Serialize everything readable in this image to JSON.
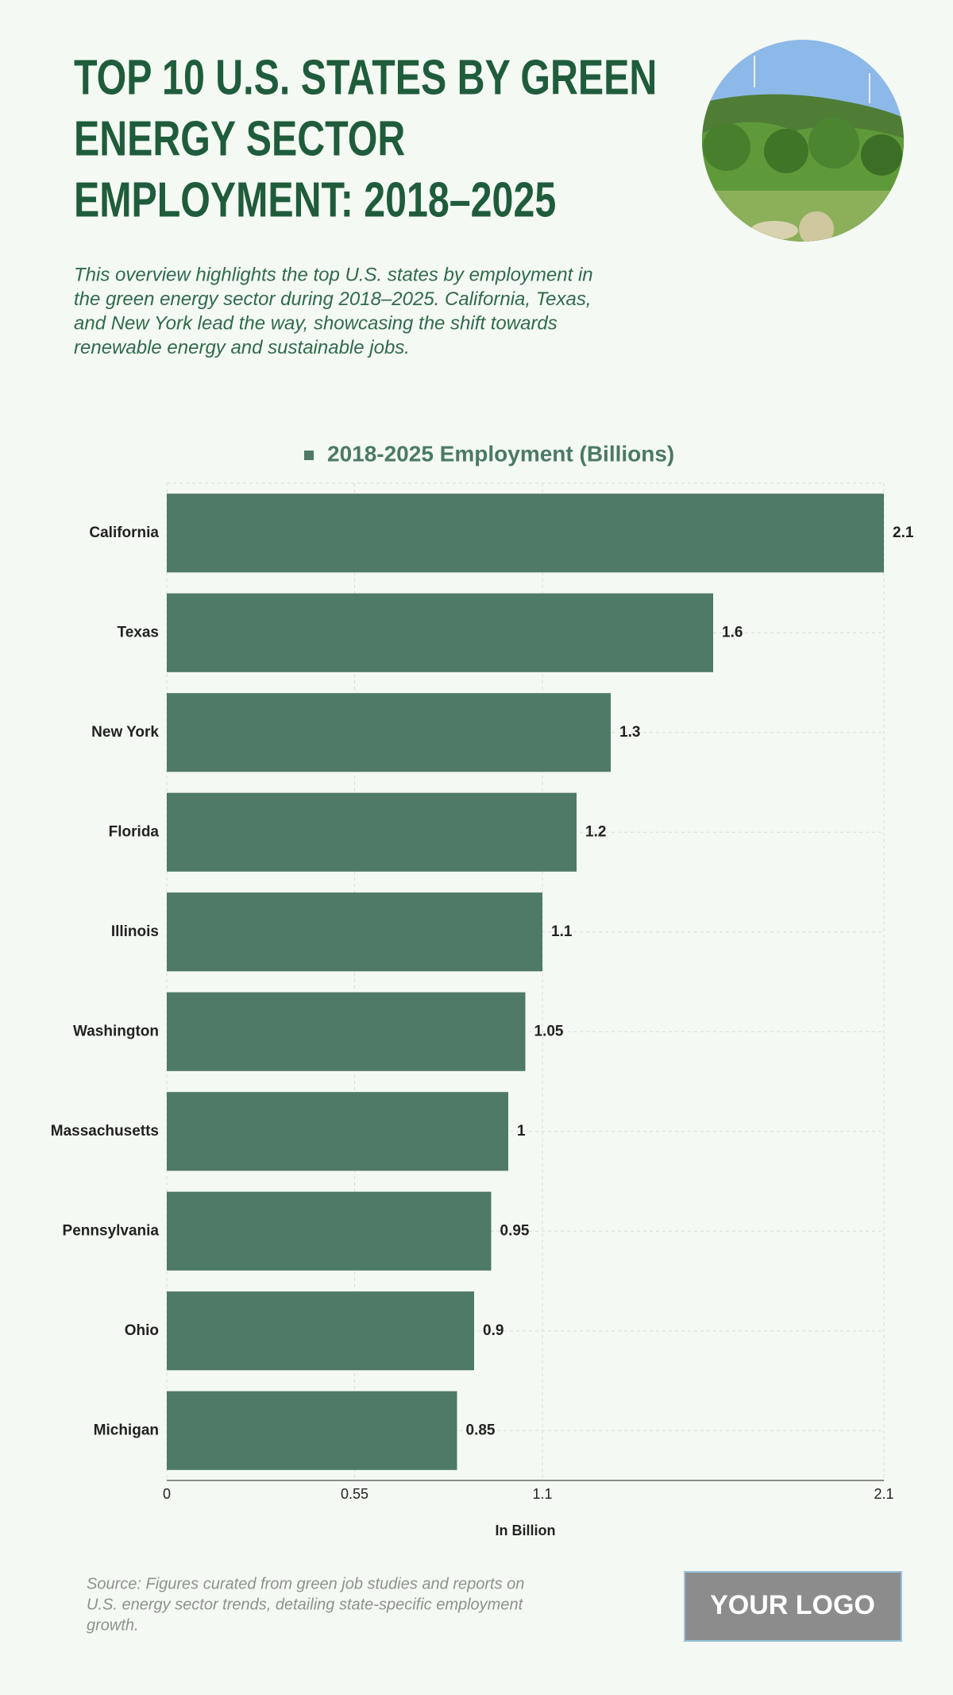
{
  "chart_data": {
    "type": "bar",
    "orientation": "horizontal",
    "title": [
      "TOP 10 U.S. STATES BY GREEN",
      "ENERGY SECTOR",
      "EMPLOYMENT: 2018–2025"
    ],
    "subtitle": [
      "This overview highlights the top U.S. states by employment in",
      "the green energy sector during 2018–2025. California, Texas,",
      "and New York lead the way, showcasing the shift towards",
      "renewable energy and sustainable jobs."
    ],
    "categories": [
      "California",
      "Texas",
      "New York",
      "Florida",
      "Illinois",
      "Washington",
      "Massachusetts",
      "Pennsylvania",
      "Ohio",
      "Michigan"
    ],
    "series": [
      {
        "name": "2018-2025 Employment (Billions)",
        "color": "#4e7a66",
        "values": [
          2.1,
          1.6,
          1.3,
          1.2,
          1.1,
          1.05,
          1,
          0.95,
          0.9,
          0.85
        ]
      }
    ],
    "xlim": [
      0,
      2.1
    ],
    "xticks": [
      0,
      0.55,
      1.1,
      2.1
    ],
    "xlabel": "In Billion",
    "grid": true,
    "legend": "top",
    "source": [
      "Source: Figures curated from green job studies and reports on",
      "U.S. energy sector trends, detailing state-specific employment",
      "growth."
    ],
    "logo": "YOUR LOGO"
  }
}
